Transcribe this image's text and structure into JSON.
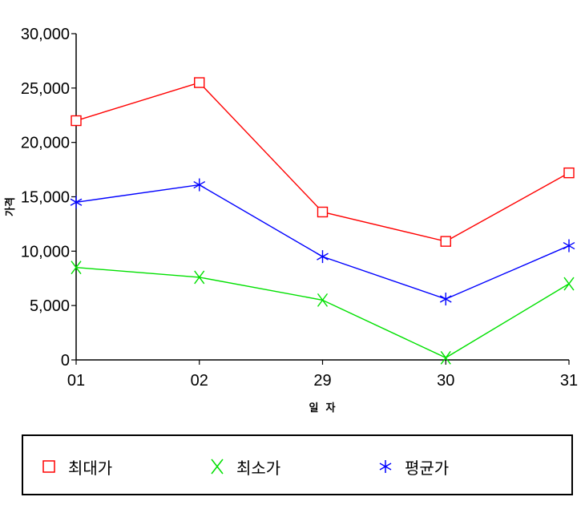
{
  "chart_data": {
    "type": "line",
    "categories": [
      "01",
      "02",
      "29",
      "30",
      "31"
    ],
    "xlabel": "일  자",
    "ylabel": "가격",
    "ylim": [
      0,
      30000
    ],
    "yticks": [
      "0",
      "5,000",
      "10,000",
      "15,000",
      "20,000",
      "25,000",
      "30,000"
    ],
    "ytick_values": [
      0,
      5000,
      10000,
      15000,
      20000,
      25000,
      30000
    ],
    "legend_placement": "bottom",
    "grid": false,
    "series": [
      {
        "name": "최대가",
        "marker": "square",
        "color": "#ff0000",
        "values": [
          22000,
          25500,
          13600,
          10900,
          17200
        ]
      },
      {
        "name": "최소가",
        "marker": "x",
        "color": "#00e000",
        "values": [
          8500,
          7600,
          5500,
          200,
          7000
        ]
      },
      {
        "name": "평균가",
        "marker": "asterisk",
        "color": "#0000ff",
        "values": [
          14500,
          16100,
          9500,
          5600,
          10500
        ]
      }
    ]
  }
}
